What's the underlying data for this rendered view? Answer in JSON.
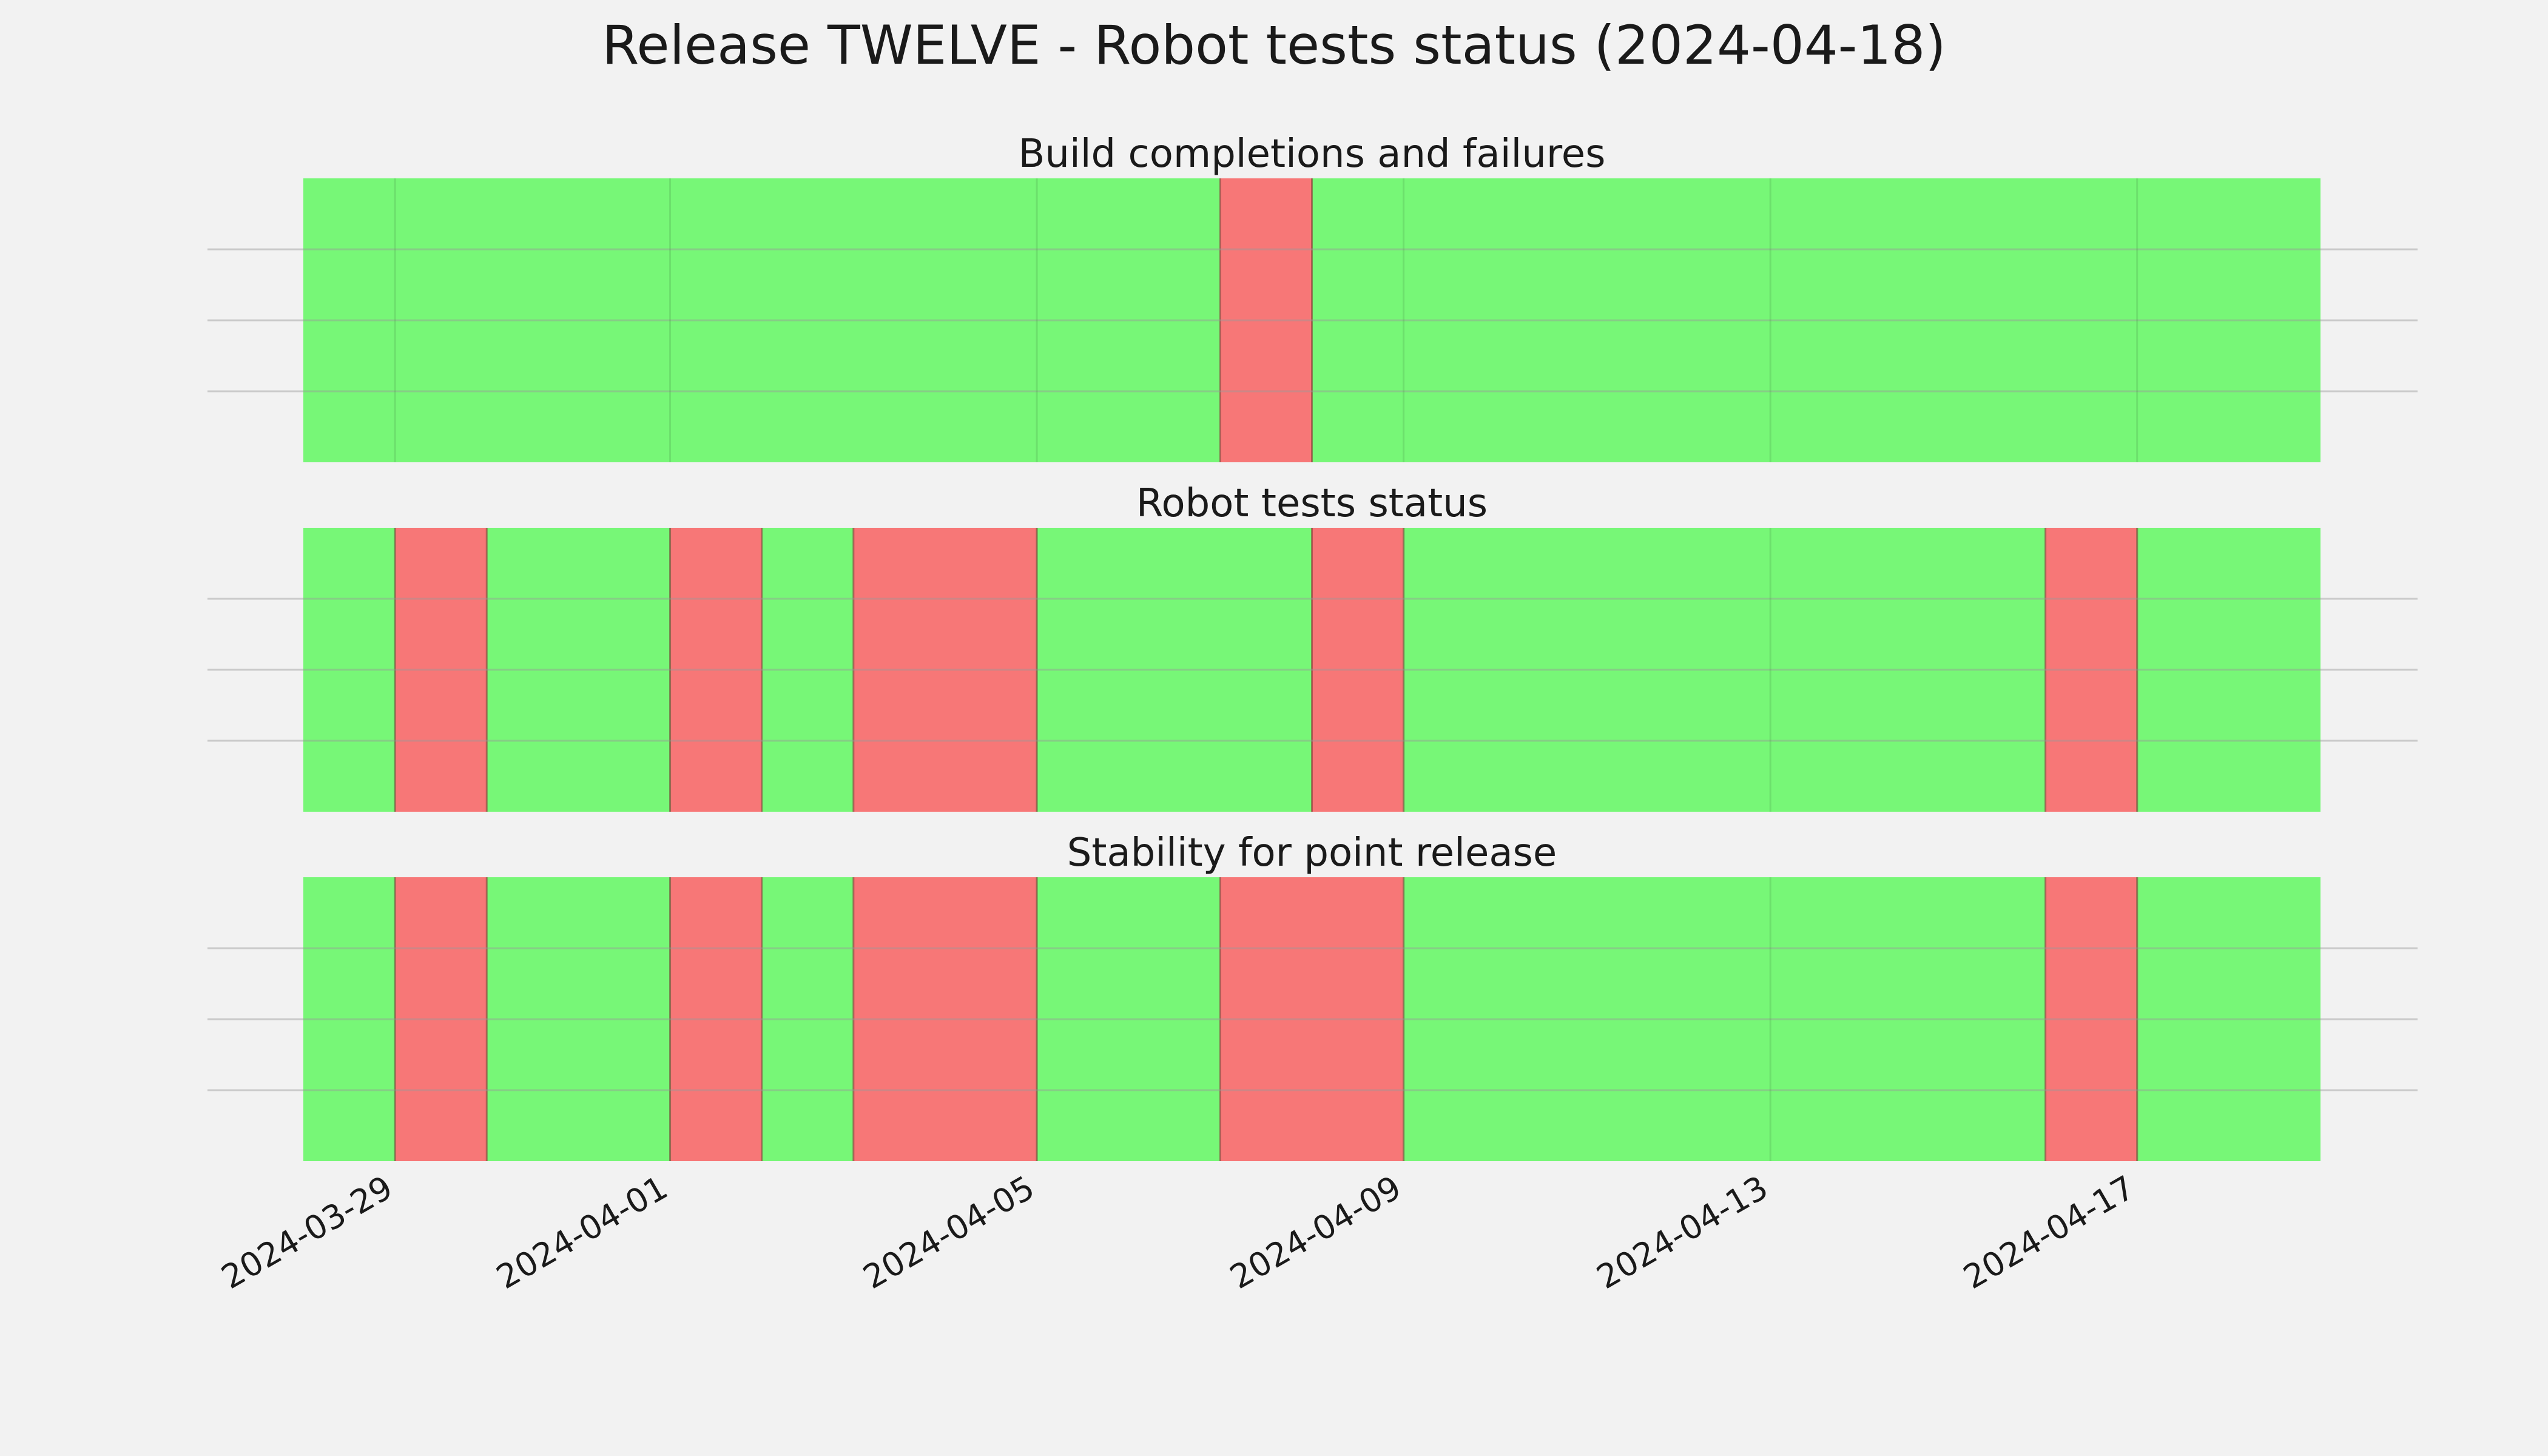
{
  "chart_data": {
    "type": "timeline-status",
    "title": "Release TWELVE - Robot tests status (2024-04-18)",
    "x_axis": {
      "type": "date",
      "range": [
        "2024-03-28",
        "2024-04-19"
      ],
      "ticks": [
        "2024-03-29",
        "2024-04-01",
        "2024-04-05",
        "2024-04-09",
        "2024-04-13",
        "2024-04-17"
      ]
    },
    "status_colors": {
      "pass": "#77f777",
      "fail": "#f77777"
    },
    "background_color": "#f2f2f2",
    "gridlines": true,
    "panels": [
      {
        "subtitle": "Build completions and failures",
        "segments": [
          {
            "start": "2024-03-28",
            "end": "2024-04-07",
            "status": "pass"
          },
          {
            "start": "2024-04-07",
            "end": "2024-04-08",
            "status": "fail"
          },
          {
            "start": "2024-04-08",
            "end": "2024-04-19",
            "status": "pass"
          }
        ]
      },
      {
        "subtitle": "Robot tests status",
        "segments": [
          {
            "start": "2024-03-28",
            "end": "2024-03-29",
            "status": "pass"
          },
          {
            "start": "2024-03-29",
            "end": "2024-03-30",
            "status": "fail"
          },
          {
            "start": "2024-03-30",
            "end": "2024-04-01",
            "status": "pass"
          },
          {
            "start": "2024-04-01",
            "end": "2024-04-02",
            "status": "fail"
          },
          {
            "start": "2024-04-02",
            "end": "2024-04-03",
            "status": "pass"
          },
          {
            "start": "2024-04-03",
            "end": "2024-04-05",
            "status": "fail"
          },
          {
            "start": "2024-04-05",
            "end": "2024-04-08",
            "status": "pass"
          },
          {
            "start": "2024-04-08",
            "end": "2024-04-09",
            "status": "fail"
          },
          {
            "start": "2024-04-09",
            "end": "2024-04-16",
            "status": "pass"
          },
          {
            "start": "2024-04-16",
            "end": "2024-04-17",
            "status": "fail"
          },
          {
            "start": "2024-04-17",
            "end": "2024-04-19",
            "status": "pass"
          }
        ]
      },
      {
        "subtitle": "Stability for point release",
        "segments": [
          {
            "start": "2024-03-28",
            "end": "2024-03-29",
            "status": "pass"
          },
          {
            "start": "2024-03-29",
            "end": "2024-03-30",
            "status": "fail"
          },
          {
            "start": "2024-03-30",
            "end": "2024-04-01",
            "status": "pass"
          },
          {
            "start": "2024-04-01",
            "end": "2024-04-02",
            "status": "fail"
          },
          {
            "start": "2024-04-02",
            "end": "2024-04-03",
            "status": "pass"
          },
          {
            "start": "2024-04-03",
            "end": "2024-04-05",
            "status": "fail"
          },
          {
            "start": "2024-04-05",
            "end": "2024-04-07",
            "status": "pass"
          },
          {
            "start": "2024-04-07",
            "end": "2024-04-09",
            "status": "fail"
          },
          {
            "start": "2024-04-09",
            "end": "2024-04-16",
            "status": "pass"
          },
          {
            "start": "2024-04-16",
            "end": "2024-04-17",
            "status": "fail"
          },
          {
            "start": "2024-04-17",
            "end": "2024-04-19",
            "status": "pass"
          }
        ]
      }
    ]
  }
}
